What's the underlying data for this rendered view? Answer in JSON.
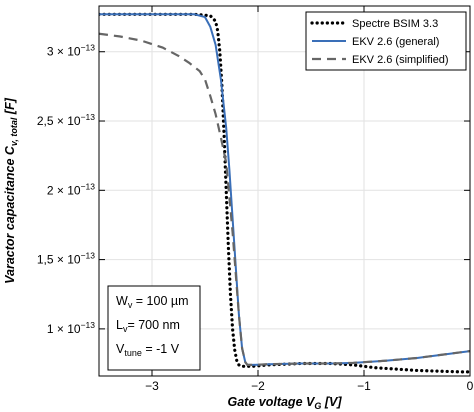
{
  "chart_data": {
    "type": "line",
    "xlabel": "Gate voltage V_G [V]",
    "ylabel": "Varactor capacitance C_v, total [F]",
    "xlim": [
      -3.5,
      0.0
    ],
    "ylim": [
      6.6e-14,
      3.33e-13
    ],
    "grid": true,
    "legend_position": "top-right",
    "x_ticks": [
      {
        "value": -3,
        "label": "−3"
      },
      {
        "value": -2,
        "label": "−2"
      },
      {
        "value": -1,
        "label": "−1"
      },
      {
        "value": 0,
        "label": "0"
      }
    ],
    "y_ticks": [
      {
        "value": 1e-13,
        "mantissa": "1",
        "exponent": "−13"
      },
      {
        "value": 1.5e-13,
        "mantissa": "1,5",
        "exponent": "−13"
      },
      {
        "value": 2e-13,
        "mantissa": "2",
        "exponent": "−13"
      },
      {
        "value": 2.5e-13,
        "mantissa": "2,5",
        "exponent": "−13"
      },
      {
        "value": 3e-13,
        "mantissa": "3",
        "exponent": "−13"
      }
    ],
    "series": [
      {
        "name": "Spectre BSIM 3.3",
        "style": "dotted",
        "color": "#000000",
        "x": [
          -3.5,
          -3.0,
          -2.6,
          -2.45,
          -2.4,
          -2.38,
          -2.36,
          -2.34,
          -2.32,
          -2.3,
          -2.28,
          -2.26,
          -2.24,
          -2.22,
          -2.2,
          -2.18,
          -2.16,
          -2.14,
          -2.1,
          -2.05,
          -1.9,
          -1.6,
          -1.3,
          -1.1,
          -1.0,
          -0.9,
          -0.7,
          -0.5,
          -0.3,
          -0.1,
          0.0
        ],
        "y": [
          3.27e-13,
          3.27e-13,
          3.27e-13,
          3.26e-13,
          3.22e-13,
          3.15e-13,
          3e-13,
          2.75e-13,
          2.4e-13,
          2e-13,
          1.6e-13,
          1.25e-13,
          1e-13,
          8.5e-14,
          7.7e-14,
          7.4e-14,
          7.3e-14,
          7.3e-14,
          7.3e-14,
          7.3e-14,
          7.4e-14,
          7.5e-14,
          7.5e-14,
          7.4e-14,
          7.3e-14,
          7.2e-14,
          7.1e-14,
          7e-14,
          6.95e-14,
          6.9e-14,
          6.9e-14
        ]
      },
      {
        "name": "EKV 2.6 (general)",
        "style": "solid",
        "color": "#3a6fb8",
        "x": [
          -3.5,
          -3.0,
          -2.6,
          -2.5,
          -2.45,
          -2.4,
          -2.35,
          -2.3,
          -2.27,
          -2.24,
          -2.21,
          -2.18,
          -2.15,
          -2.12,
          -2.1,
          -2.05,
          -1.9,
          -1.6,
          -1.3,
          -1.1,
          -0.8,
          -0.5,
          -0.2,
          0.0
        ],
        "y": [
          3.27e-13,
          3.27e-13,
          3.27e-13,
          3.25e-13,
          3.18e-13,
          3.05e-13,
          2.8e-13,
          2.45e-13,
          2.15e-13,
          1.8e-13,
          1.45e-13,
          1.1e-13,
          8.6e-14,
          7.6e-14,
          7.4e-14,
          7.4e-14,
          7.45e-14,
          7.5e-14,
          7.5e-14,
          7.55e-14,
          7.7e-14,
          7.9e-14,
          8.2e-14,
          8.4e-14
        ]
      },
      {
        "name": "EKV 2.6 (simplified)",
        "style": "dashed",
        "color": "#666666",
        "x": [
          -3.5,
          -3.3,
          -3.1,
          -2.9,
          -2.75,
          -2.65,
          -2.55,
          -2.5,
          -2.45,
          -2.4,
          -2.35,
          -2.3,
          -2.27,
          -2.24,
          -2.21,
          -2.18,
          -2.15,
          -2.12,
          -2.1,
          -2.05,
          -1.9,
          -1.6,
          -1.3,
          -1.1,
          -0.8,
          -0.5,
          -0.2,
          0.0
        ],
        "y": [
          3.13e-13,
          3.11e-13,
          3.08e-13,
          3.03e-13,
          2.97e-13,
          2.92e-13,
          2.86e-13,
          2.8e-13,
          2.68e-13,
          2.55e-13,
          2.38e-13,
          2.2e-13,
          1.95e-13,
          1.7e-13,
          1.4e-13,
          1.1e-13,
          8.6e-14,
          7.6e-14,
          7.4e-14,
          7.4e-14,
          7.45e-14,
          7.5e-14,
          7.5e-14,
          7.55e-14,
          7.7e-14,
          7.9e-14,
          8.2e-14,
          8.4e-14
        ]
      }
    ],
    "annotation": {
      "lines": [
        {
          "main": "W",
          "sub": "v",
          "rest": " = 100 µm"
        },
        {
          "main": "L",
          "sub": "v",
          "rest": "= 700 nm"
        },
        {
          "main": "V",
          "sub": "tune",
          "rest": " = -1 V"
        }
      ]
    }
  }
}
